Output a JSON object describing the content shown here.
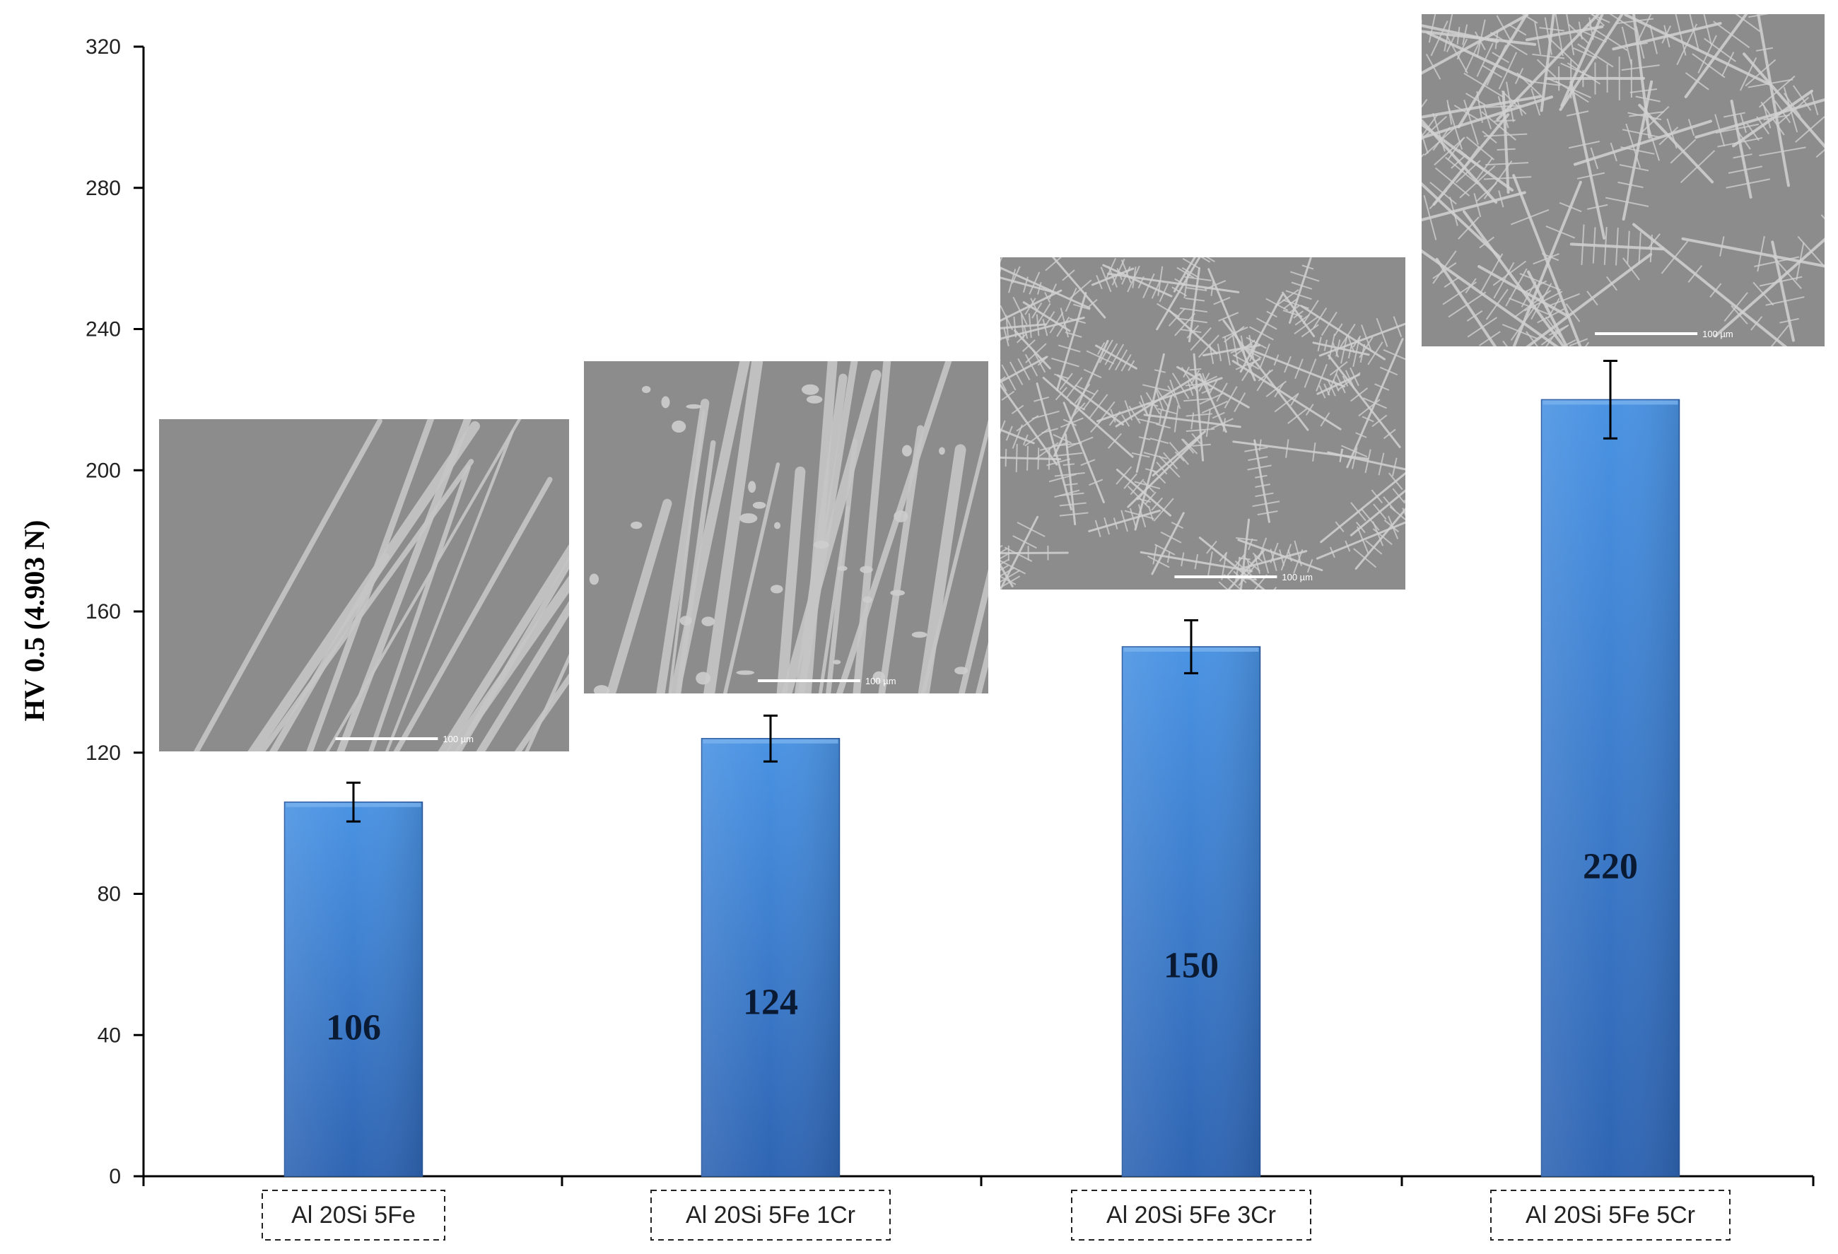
{
  "chart_data": {
    "type": "bar",
    "title": "",
    "xlabel": "",
    "ylabel": "HV  0.5 (4.903 N)",
    "ylim": [
      0,
      320
    ],
    "yticks": [
      0,
      40,
      80,
      120,
      160,
      200,
      240,
      280,
      320
    ],
    "categories": [
      "Al 20Si 5Fe",
      "Al 20Si 5Fe 1Cr",
      "Al 20Si 5Fe 3Cr",
      "Al 20Si 5Fe 5Cr"
    ],
    "values": [
      106,
      124,
      150,
      220
    ],
    "value_labels": [
      "106",
      "124",
      "150",
      "220"
    ],
    "error": [
      5.5,
      6.5,
      7.5,
      11
    ],
    "bar_color": "#3f86d9",
    "bar_color_dark": "#2b61ad",
    "grid": false,
    "legend": "none",
    "insets": [
      {
        "name": "micrograph-al20si5fe",
        "morphology": "needles",
        "scale_label": "100 µm"
      },
      {
        "name": "micrograph-al20si5fe1cr",
        "morphology": "needles-and-particles",
        "scale_label": "100 µm"
      },
      {
        "name": "micrograph-al20si5fe3cr",
        "morphology": "fine-dendrites",
        "scale_label": "100 µm"
      },
      {
        "name": "micrograph-al20si5fe5cr",
        "morphology": "coarse-dendrites",
        "scale_label": "100 µm"
      }
    ]
  }
}
